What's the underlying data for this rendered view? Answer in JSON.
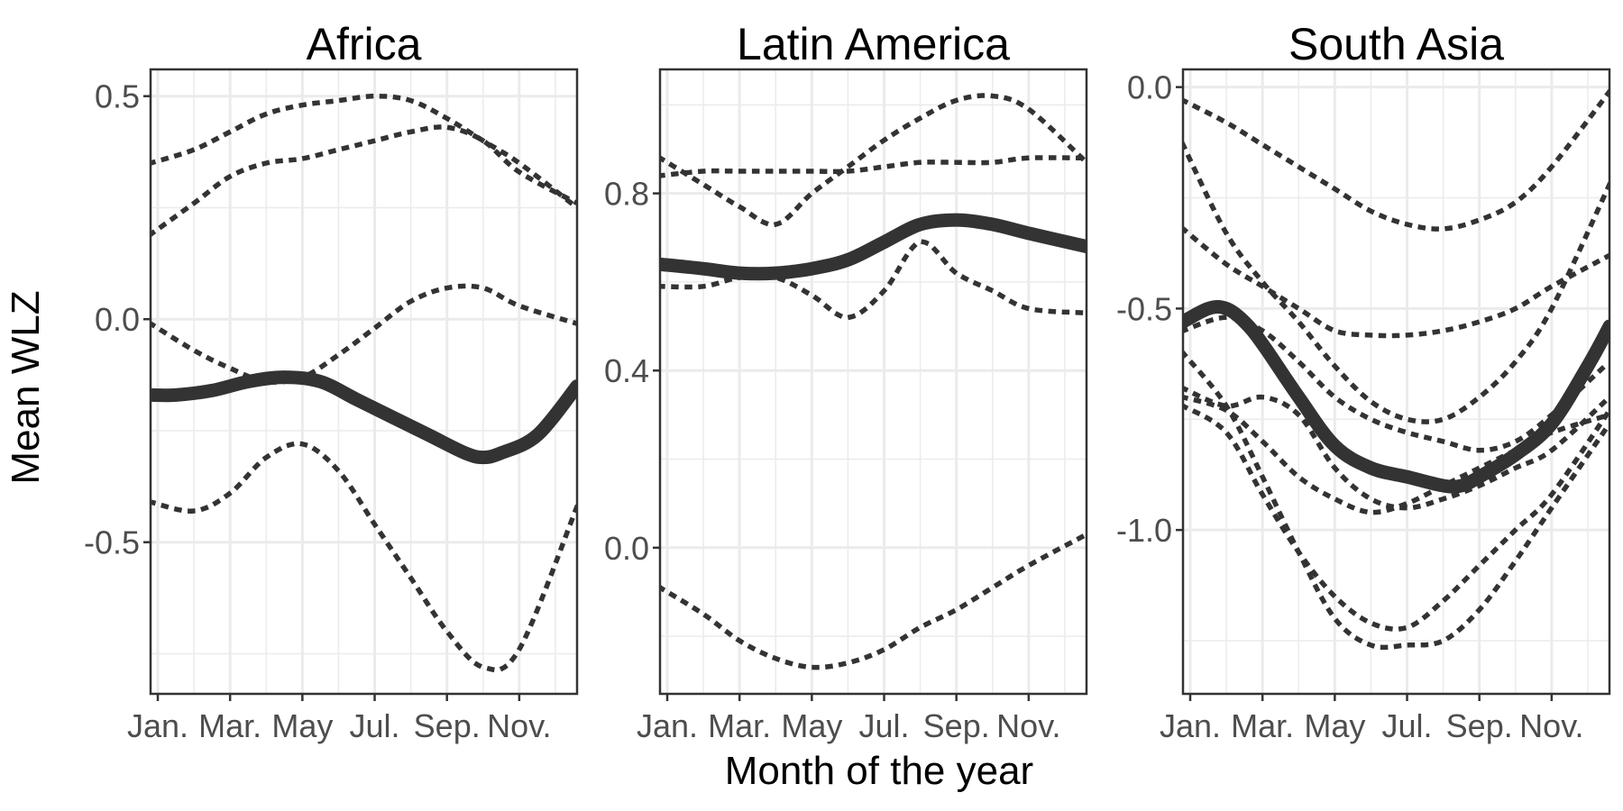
{
  "chart_data": {
    "type": "line",
    "ylabel": "Mean WLZ",
    "xlabel": "Month of the year",
    "x_tick_labels": [
      "Jan.",
      "Mar.",
      "May",
      "Jul.",
      "Sep.",
      "Nov."
    ],
    "x_tick_months": [
      1,
      3,
      5,
      7,
      9,
      11
    ],
    "xlim": [
      0.8,
      12.6
    ],
    "grid": true,
    "colors": {
      "line": "#333333",
      "grid": "#ebebeb",
      "panel_border": "#333333"
    },
    "panels": [
      {
        "title": "Africa",
        "ylim": [
          -0.84,
          0.56
        ],
        "yticks": [
          0.5,
          0.0,
          -0.5
        ],
        "ytick_labels": [
          "0.5",
          "0.0",
          "-0.5"
        ],
        "mean": {
          "x": [
            0.8,
            1.5,
            2.5,
            3.5,
            4.5,
            5.5,
            6.5,
            7.5,
            8.5,
            9.5,
            10.0,
            10.5,
            11.5,
            12.6
          ],
          "y": [
            -0.17,
            -0.17,
            -0.16,
            -0.14,
            -0.13,
            -0.14,
            -0.18,
            -0.22,
            -0.26,
            -0.3,
            -0.31,
            -0.3,
            -0.26,
            -0.15
          ]
        },
        "series": [
          {
            "x": [
              0.8,
              2,
              3,
              4,
              5,
              6,
              7,
              8,
              9,
              10,
              11,
              12.6
            ],
            "y": [
              0.35,
              0.38,
              0.42,
              0.46,
              0.48,
              0.49,
              0.5,
              0.49,
              0.45,
              0.4,
              0.35,
              0.25
            ]
          },
          {
            "x": [
              0.8,
              2,
              3,
              4,
              5,
              6,
              7,
              8,
              9,
              10,
              11,
              12.6
            ],
            "y": [
              0.19,
              0.26,
              0.32,
              0.35,
              0.36,
              0.38,
              0.4,
              0.42,
              0.43,
              0.4,
              0.33,
              0.26
            ]
          },
          {
            "x": [
              0.8,
              2,
              3,
              4,
              5,
              6,
              7,
              8,
              9,
              10,
              11,
              12.6
            ],
            "y": [
              -0.01,
              -0.07,
              -0.11,
              -0.14,
              -0.13,
              -0.08,
              -0.02,
              0.04,
              0.07,
              0.07,
              0.03,
              -0.01
            ]
          },
          {
            "x": [
              0.8,
              2,
              3,
              4,
              5,
              6,
              7,
              8,
              9,
              10,
              11,
              12.6
            ],
            "y": [
              -0.41,
              -0.43,
              -0.39,
              -0.31,
              -0.28,
              -0.34,
              -0.46,
              -0.58,
              -0.7,
              -0.78,
              -0.74,
              -0.42
            ]
          }
        ]
      },
      {
        "title": "Latin America",
        "ylim": [
          -0.33,
          1.08
        ],
        "yticks": [
          0.8,
          0.4,
          0.0
        ],
        "ytick_labels": [
          "0.8",
          "0.4",
          "0.0"
        ],
        "mean": {
          "x": [
            0.8,
            2,
            3,
            4,
            5,
            6,
            7,
            8,
            9,
            10,
            11,
            12.6
          ],
          "y": [
            0.64,
            0.63,
            0.62,
            0.62,
            0.63,
            0.65,
            0.69,
            0.73,
            0.74,
            0.73,
            0.71,
            0.68
          ]
        },
        "series": [
          {
            "x": [
              0.8,
              2,
              3,
              4,
              5,
              6,
              7,
              8,
              9,
              10,
              11,
              12.6
            ],
            "y": [
              0.88,
              0.82,
              0.77,
              0.73,
              0.8,
              0.86,
              0.92,
              0.97,
              1.01,
              1.02,
              0.99,
              0.87
            ]
          },
          {
            "x": [
              0.8,
              2,
              3,
              4,
              5,
              6,
              7,
              8,
              9,
              10,
              11,
              12.6
            ],
            "y": [
              0.84,
              0.85,
              0.85,
              0.85,
              0.85,
              0.85,
              0.86,
              0.87,
              0.87,
              0.87,
              0.88,
              0.88
            ]
          },
          {
            "x": [
              0.8,
              2,
              3,
              4,
              5,
              6,
              7,
              8,
              9,
              10,
              11,
              12.6
            ],
            "y": [
              0.59,
              0.59,
              0.61,
              0.61,
              0.57,
              0.52,
              0.58,
              0.69,
              0.62,
              0.58,
              0.54,
              0.53
            ]
          },
          {
            "x": [
              0.8,
              2,
              3,
              4,
              5,
              6,
              7,
              8,
              9,
              10,
              11,
              12.6
            ],
            "y": [
              -0.09,
              -0.15,
              -0.21,
              -0.25,
              -0.27,
              -0.26,
              -0.23,
              -0.18,
              -0.14,
              -0.09,
              -0.04,
              0.03
            ]
          }
        ]
      },
      {
        "title": "South Asia",
        "ylim": [
          -1.37,
          0.04
        ],
        "yticks": [
          0.0,
          -0.5,
          -1.0
        ],
        "ytick_labels": [
          "0.0",
          "-0.5",
          "-1.0"
        ],
        "mean": {
          "x": [
            0.8,
            1.5,
            2.0,
            2.5,
            3.0,
            4.0,
            5.0,
            6.0,
            7.0,
            8.0,
            8.5,
            9.0,
            10.0,
            11.0,
            12.0,
            12.6
          ],
          "y": [
            -0.53,
            -0.5,
            -0.5,
            -0.53,
            -0.58,
            -0.7,
            -0.81,
            -0.86,
            -0.88,
            -0.9,
            -0.9,
            -0.88,
            -0.83,
            -0.76,
            -0.63,
            -0.54
          ]
        },
        "series": [
          {
            "x": [
              0.8,
              2,
              3,
              4,
              5,
              6,
              7,
              8,
              9,
              10,
              11,
              12.6
            ],
            "y": [
              -0.03,
              -0.08,
              -0.13,
              -0.18,
              -0.23,
              -0.28,
              -0.31,
              -0.32,
              -0.3,
              -0.26,
              -0.18,
              -0.01
            ]
          },
          {
            "x": [
              0.8,
              2,
              3,
              4,
              5,
              6,
              7,
              8,
              9,
              10,
              11,
              12.6
            ],
            "y": [
              -0.13,
              -0.33,
              -0.44,
              -0.53,
              -0.63,
              -0.71,
              -0.75,
              -0.75,
              -0.7,
              -0.62,
              -0.5,
              -0.22
            ]
          },
          {
            "x": [
              0.8,
              2,
              3,
              4,
              5,
              6,
              7,
              8,
              9,
              10,
              11,
              12.6
            ],
            "y": [
              -0.32,
              -0.4,
              -0.45,
              -0.5,
              -0.55,
              -0.56,
              -0.56,
              -0.55,
              -0.53,
              -0.5,
              -0.45,
              -0.38
            ]
          },
          {
            "x": [
              0.8,
              2,
              3,
              4,
              5,
              6,
              7,
              8,
              9,
              10,
              11,
              12.6
            ],
            "y": [
              -0.55,
              -0.52,
              -0.55,
              -0.62,
              -0.7,
              -0.75,
              -0.78,
              -0.8,
              -0.82,
              -0.8,
              -0.74,
              -0.62
            ]
          },
          {
            "x": [
              0.8,
              2,
              3,
              4,
              5,
              6,
              7,
              8,
              9,
              10,
              11,
              12.6
            ],
            "y": [
              -0.68,
              -0.72,
              -0.7,
              -0.74,
              -0.86,
              -0.93,
              -0.95,
              -0.93,
              -0.9,
              -0.86,
              -0.82,
              -0.7
            ]
          },
          {
            "x": [
              0.8,
              2,
              3,
              4,
              5,
              6,
              7,
              8,
              9,
              10,
              11,
              12.6
            ],
            "y": [
              -0.72,
              -0.78,
              -0.92,
              -1.05,
              -1.15,
              -1.21,
              -1.22,
              -1.16,
              -1.08,
              -1.0,
              -0.92,
              -0.73
            ]
          },
          {
            "x": [
              0.8,
              2,
              3,
              4,
              5,
              6,
              7,
              8,
              9,
              10,
              11,
              12.6
            ],
            "y": [
              -0.6,
              -0.72,
              -0.88,
              -1.05,
              -1.2,
              -1.26,
              -1.26,
              -1.25,
              -1.18,
              -1.07,
              -0.95,
              -0.76
            ]
          },
          {
            "x": [
              0.8,
              2,
              3,
              4,
              5,
              6,
              7,
              8,
              9,
              10,
              11,
              12.6
            ],
            "y": [
              -0.7,
              -0.73,
              -0.8,
              -0.88,
              -0.93,
              -0.96,
              -0.94,
              -0.9,
              -0.86,
              -0.82,
              -0.78,
              -0.74
            ]
          }
        ]
      }
    ]
  }
}
